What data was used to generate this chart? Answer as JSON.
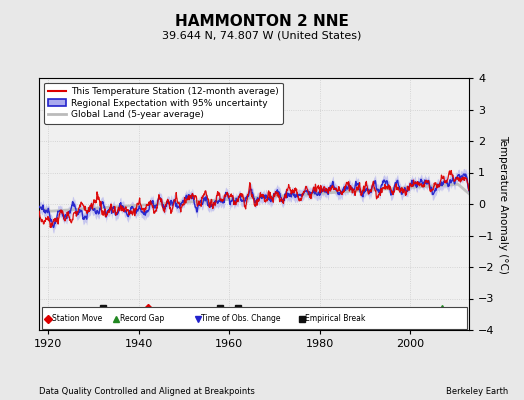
{
  "title": "HAMMONTON 2 NNE",
  "subtitle": "39.644 N, 74.807 W (United States)",
  "xlabel_bottom": "Data Quality Controlled and Aligned at Breakpoints",
  "xlabel_right": "Berkeley Earth",
  "ylabel": "Temperature Anomaly (°C)",
  "year_start": 1918,
  "year_end": 2013,
  "ylim": [
    -4,
    4
  ],
  "yticks": [
    -4,
    -3,
    -2,
    -1,
    0,
    1,
    2,
    3,
    4
  ],
  "xticks": [
    1920,
    1940,
    1960,
    1980,
    2000
  ],
  "bg_color": "#e8e8e8",
  "plot_bg_color": "#f0f0f0",
  "line_red": "#dd0000",
  "line_blue": "#2222cc",
  "fill_blue": "#aaaaee",
  "line_gray": "#bbbbbb",
  "station_moves": [
    1942.0
  ],
  "record_gaps": [
    2007.0
  ],
  "tobs_changes": [],
  "emp_breaks": [
    1932.0,
    1958.0,
    1962.0
  ]
}
